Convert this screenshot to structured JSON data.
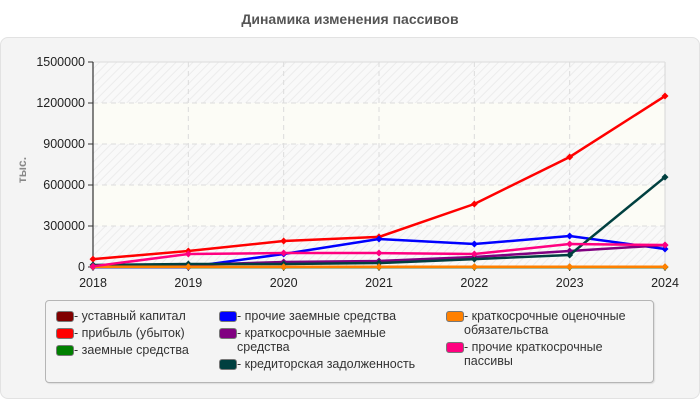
{
  "chart_data": {
    "type": "line",
    "title": "Динамика изменения пассивов",
    "xlabel": "",
    "ylabel": "тыс.",
    "categories": [
      "2018",
      "2019",
      "2020",
      "2021",
      "2022",
      "2023",
      "2024"
    ],
    "ylim": [
      0,
      1500000
    ],
    "yticks": [
      "0",
      "300000",
      "600000",
      "900000",
      "1200000",
      "1500000"
    ],
    "grid": true,
    "legend_position": "bottom",
    "series": [
      {
        "name": "уставный капитал",
        "color": "#800000",
        "values": [
          10,
          10,
          10,
          10,
          10,
          10,
          10
        ]
      },
      {
        "name": "прибыль (убыток)",
        "color": "#ff0000",
        "values": [
          58000,
          117000,
          190000,
          220000,
          461000,
          805000,
          1251000
        ]
      },
      {
        "name": "заемные средства",
        "color": "#008000",
        "values": [
          0,
          0,
          0,
          0,
          0,
          0,
          0
        ]
      },
      {
        "name": "прочие заемные средства",
        "color": "#0000ff",
        "values": [
          0,
          0,
          95000,
          205000,
          168000,
          227000,
          132000
        ]
      },
      {
        "name": "краткосрочные заемные средства",
        "color": "#800080",
        "values": [
          0,
          15000,
          37000,
          44000,
          73000,
          117000,
          160000
        ]
      },
      {
        "name": "кредиторская задолженность",
        "color": "#004040",
        "values": [
          15000,
          22000,
          22000,
          29000,
          58000,
          88000,
          658000
        ]
      },
      {
        "name": "краткосрочные оценочные обязательства",
        "color": "#ff8000",
        "values": [
          2000,
          2000,
          2000,
          2000,
          2000,
          2000,
          2000
        ]
      },
      {
        "name": "прочие краткосрочные пассивы",
        "color": "#ff0080",
        "values": [
          5000,
          95000,
          102000,
          102000,
          95000,
          168000,
          161000
        ]
      }
    ]
  },
  "header": {
    "title": "Динамика изменения пассивов"
  },
  "axis": {
    "ylabel": "тыс."
  },
  "legend": {
    "columns": [
      [
        {
          "label": "уставный капитал",
          "color": "#800000"
        },
        {
          "label": "прибыль (убыток)",
          "color": "#ff0000"
        },
        {
          "label": "заемные средства",
          "color": "#008000"
        }
      ],
      [
        {
          "label": "прочие заемные средства",
          "color": "#0000ff"
        },
        {
          "label": "краткосрочные заемные средства",
          "color": "#800080"
        },
        {
          "label": "кредиторская задолженность",
          "color": "#004040"
        }
      ],
      [
        {
          "label": "краткосрочные оценочные обязательства",
          "color": "#ff8000"
        },
        {
          "label": "прочие краткосрочные пассивы",
          "color": "#ff0080"
        }
      ]
    ]
  }
}
